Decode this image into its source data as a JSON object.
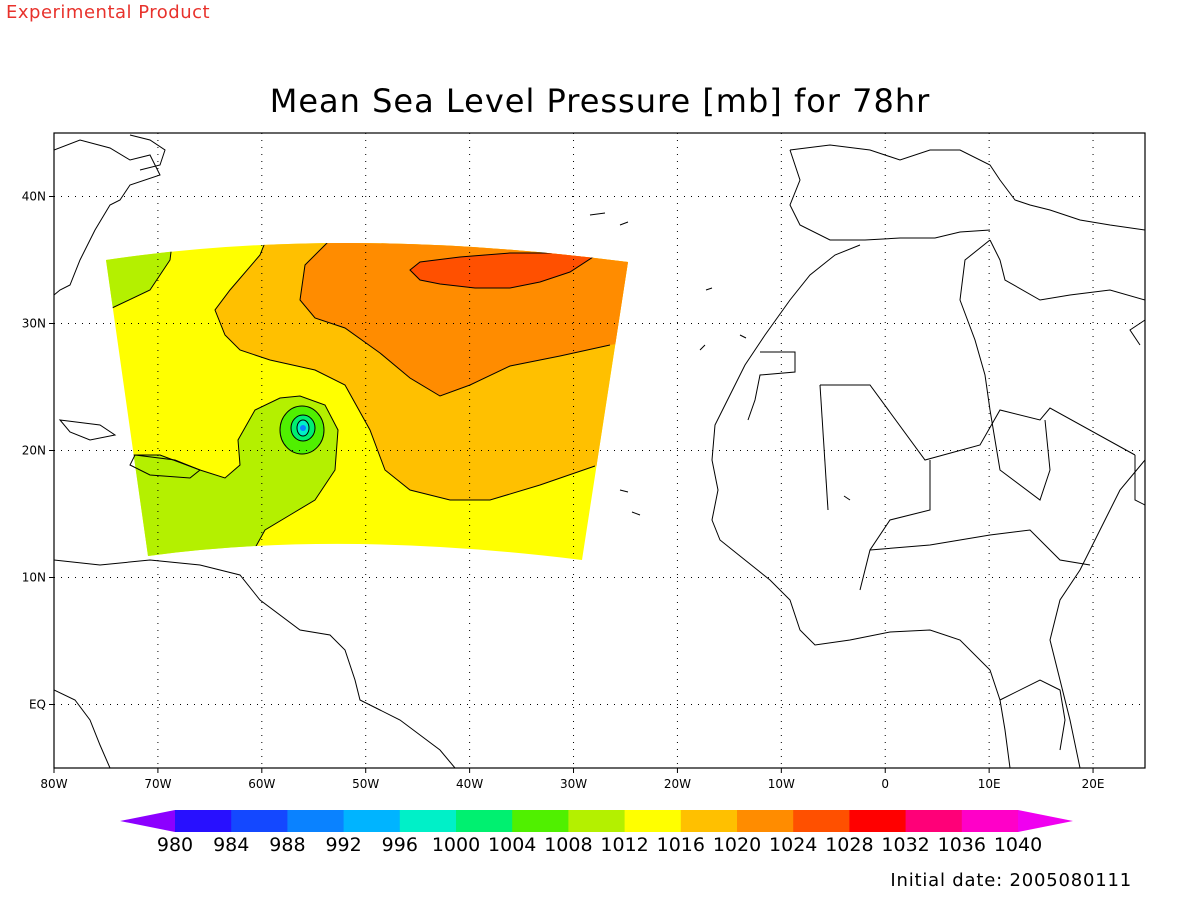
{
  "header": {
    "product_label": "Experimental Product",
    "title": "Mean Sea Level Pressure [mb] for 78hr"
  },
  "footer": {
    "initial_date": "Initial date: 2005080111"
  },
  "map": {
    "projection": "lat-lon",
    "lon_range": [
      -80,
      25
    ],
    "lat_range": [
      -5,
      45
    ],
    "grid": "dotted",
    "x_ticks": [
      {
        "lon": -80,
        "label": "80W"
      },
      {
        "lon": -70,
        "label": "70W"
      },
      {
        "lon": -60,
        "label": "60W"
      },
      {
        "lon": -50,
        "label": "50W"
      },
      {
        "lon": -40,
        "label": "40W"
      },
      {
        "lon": -30,
        "label": "30W"
      },
      {
        "lon": -20,
        "label": "20W"
      },
      {
        "lon": -10,
        "label": "10W"
      },
      {
        "lon": 0,
        "label": "0"
      },
      {
        "lon": 10,
        "label": "10E"
      },
      {
        "lon": 20,
        "label": "20E"
      }
    ],
    "y_ticks": [
      {
        "lat": 40,
        "label": "40N"
      },
      {
        "lat": 30,
        "label": "30N"
      },
      {
        "lat": 20,
        "label": "20N"
      },
      {
        "lat": 10,
        "label": "10N"
      },
      {
        "lat": 0,
        "label": "EQ"
      }
    ],
    "pressure_center": {
      "lon": -56,
      "lat": 21.5
    }
  },
  "colorbar": {
    "levels": [
      "980",
      "984",
      "988",
      "992",
      "996",
      "1000",
      "1004",
      "1008",
      "1012",
      "1016",
      "1020",
      "1024",
      "1028",
      "1032",
      "1036",
      "1040"
    ],
    "colors": [
      "#8c00ff",
      "#2810ff",
      "#1448ff",
      "#0a82ff",
      "#00b4ff",
      "#00f0c8",
      "#00f070",
      "#50f000",
      "#b4f000",
      "#ffff00",
      "#ffc000",
      "#ff8c00",
      "#ff5000",
      "#ff0000",
      "#ff0078",
      "#ff00c8",
      "#f000f0"
    ]
  },
  "chart_data": {
    "type": "heatmap",
    "title": "Mean Sea Level Pressure [mb] for 78hr",
    "units": "mb",
    "x_range_lon": [
      -80,
      25
    ],
    "y_range_lat": [
      -5,
      45
    ],
    "contour_levels": [
      1008,
      1012,
      1016,
      1020,
      1024,
      1028
    ],
    "regions": [
      {
        "level": "1008-1012",
        "color": "#b4f000",
        "location": "Caribbean / low centre"
      },
      {
        "level": "1012-1016",
        "color": "#ffff00",
        "location": "southern domain"
      },
      {
        "level": "1016-1020",
        "color": "#ffc000",
        "location": "central Atlantic"
      },
      {
        "level": "1020-1024",
        "color": "#ff8c00",
        "location": "northern central Atlantic"
      },
      {
        "level": "1024-1028",
        "color": "#ff5000",
        "location": "high near 35N 40W"
      }
    ]
  }
}
